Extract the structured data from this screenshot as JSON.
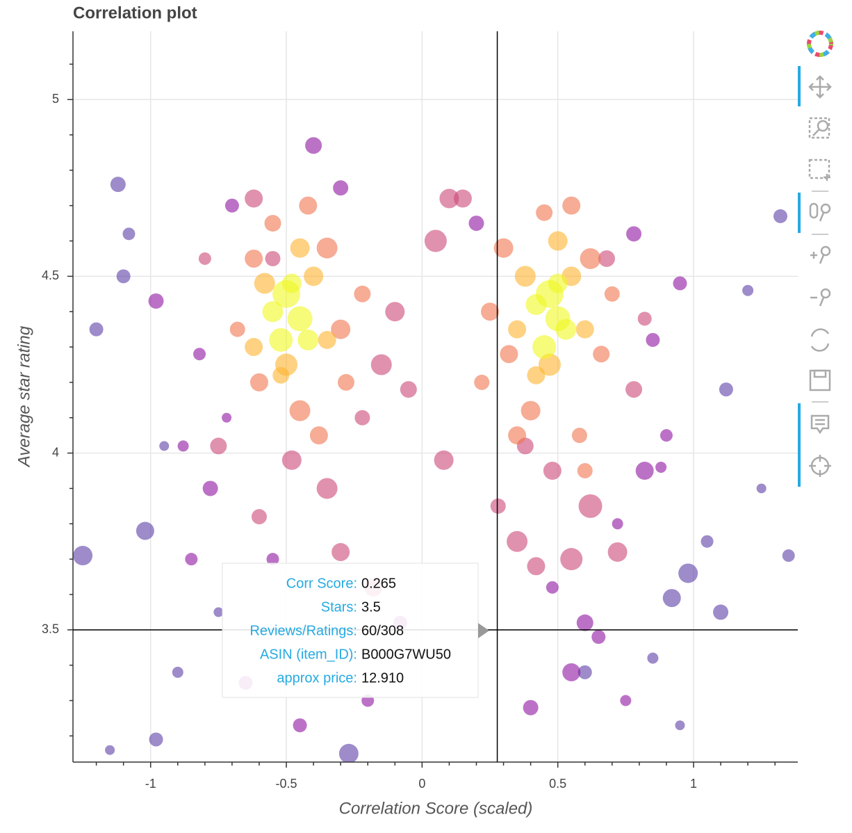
{
  "chart_data": {
    "type": "scatter",
    "title": "Correlation plot",
    "x_label": "Correlation Score (scaled)",
    "y_label": "Average star rating",
    "xlim": [
      -1.286,
      1.384
    ],
    "ylim": [
      3.126,
      5.193
    ],
    "xticks": [
      -1,
      -0.5,
      0,
      0.5,
      1
    ],
    "yticks": [
      3.5,
      4,
      4.5,
      5
    ],
    "xminorticks": [
      -1.2,
      -1.1,
      -0.9,
      -0.8,
      -0.7,
      -0.6,
      -0.4,
      -0.3,
      -0.2,
      -0.1,
      0.1,
      0.2,
      0.3,
      0.4,
      0.6,
      0.7,
      0.8,
      0.9,
      1.1,
      1.2,
      1.3
    ],
    "yminorticks": [
      3.2,
      3.3,
      3.4,
      3.6,
      3.7,
      3.8,
      3.9,
      4.1,
      4.2,
      4.3,
      4.4,
      4.6,
      4.7,
      4.8,
      4.9,
      5.1
    ],
    "grid": true,
    "opacity": 0.6,
    "crosshair": {
      "x": 0.277,
      "y": 3.5
    },
    "series": [
      {
        "color": "#5c3da6",
        "x": [
          -1.12,
          -1.02,
          -0.98,
          -1.25,
          -1.1,
          -0.9,
          -1.15,
          0.98,
          1.12,
          1.2,
          1.32,
          1.05,
          0.92,
          -1.2,
          -0.75,
          -0.27,
          0.6,
          1.25,
          -1.08,
          1.1,
          0.85,
          -0.95,
          1.35,
          0.95
        ],
        "y": [
          4.76,
          3.78,
          3.19,
          3.71,
          4.5,
          3.38,
          3.16,
          3.66,
          4.18,
          4.46,
          4.67,
          3.75,
          3.59,
          4.35,
          3.55,
          3.15,
          3.38,
          3.9,
          4.62,
          3.55,
          3.42,
          4.02,
          3.71,
          3.23
        ],
        "sizes": [
          22,
          26,
          20,
          28,
          20,
          16,
          14,
          28,
          20,
          16,
          20,
          18,
          26,
          20,
          14,
          28,
          20,
          14,
          18,
          22,
          16,
          14,
          18,
          14
        ]
      },
      {
        "color": "#8e14a0",
        "x": [
          -0.98,
          -0.82,
          -0.7,
          -0.78,
          -0.88,
          -0.4,
          -0.3,
          -0.2,
          -0.65,
          0.78,
          0.85,
          0.9,
          0.72,
          0.82,
          0.6,
          0.65,
          0.55,
          0.4,
          -0.55,
          -0.85,
          0.95,
          0.88,
          -0.72,
          0.2,
          -0.08,
          0.75,
          -0.45,
          0.48
        ],
        "y": [
          4.43,
          4.28,
          4.7,
          3.9,
          4.02,
          4.87,
          4.75,
          3.3,
          3.35,
          4.62,
          4.32,
          4.05,
          3.8,
          3.95,
          3.52,
          3.48,
          3.38,
          3.28,
          3.7,
          3.7,
          4.48,
          3.96,
          4.1,
          4.65,
          3.52,
          3.3,
          3.23,
          3.62
        ],
        "sizes": [
          22,
          18,
          20,
          22,
          16,
          24,
          22,
          18,
          20,
          22,
          20,
          18,
          16,
          26,
          24,
          20,
          26,
          22,
          18,
          18,
          20,
          16,
          14,
          22,
          20,
          16,
          20,
          18
        ]
      },
      {
        "color": "#cc4778",
        "x": [
          -0.75,
          -0.6,
          -0.3,
          -0.22,
          -0.15,
          -0.1,
          0.05,
          0.1,
          0.15,
          -0.05,
          0.28,
          0.35,
          0.42,
          0.62,
          0.72,
          0.78,
          -0.62,
          -0.48,
          -0.35,
          0.55,
          0.48,
          -0.55,
          0.38,
          0.08,
          -0.18,
          0.68,
          -0.8,
          0.82
        ],
        "y": [
          4.02,
          3.82,
          3.72,
          4.1,
          4.25,
          4.4,
          4.6,
          4.72,
          4.72,
          4.18,
          3.85,
          3.75,
          3.68,
          3.85,
          3.72,
          4.18,
          4.72,
          3.98,
          3.9,
          3.7,
          3.95,
          4.55,
          4.02,
          3.98,
          3.62,
          4.55,
          4.55,
          4.38
        ],
        "sizes": [
          24,
          22,
          26,
          22,
          30,
          28,
          32,
          28,
          26,
          24,
          22,
          30,
          26,
          34,
          28,
          24,
          26,
          28,
          30,
          32,
          26,
          22,
          24,
          28,
          26,
          24,
          18,
          20
        ]
      },
      {
        "color": "#f0754f",
        "x": [
          -0.62,
          -0.35,
          -0.3,
          -0.6,
          -0.45,
          -0.38,
          -0.68,
          -0.22,
          -0.55,
          -0.42,
          0.3,
          0.62,
          0.32,
          0.66,
          0.4,
          0.58,
          0.25,
          0.7,
          0.45,
          0.55,
          0.22,
          -0.28,
          0.35,
          0.6
        ],
        "y": [
          4.55,
          4.58,
          4.35,
          4.2,
          4.12,
          4.05,
          4.35,
          4.45,
          4.65,
          4.7,
          4.58,
          4.55,
          4.28,
          4.28,
          4.12,
          4.05,
          4.4,
          4.45,
          4.68,
          4.7,
          4.2,
          4.2,
          4.05,
          3.95
        ],
        "sizes": [
          26,
          30,
          28,
          26,
          30,
          26,
          22,
          24,
          24,
          26,
          28,
          30,
          26,
          24,
          28,
          22,
          26,
          22,
          24,
          26,
          22,
          24,
          26,
          22
        ]
      },
      {
        "color": "#fdb42f",
        "x": [
          -0.58,
          -0.4,
          -0.5,
          -0.35,
          -0.62,
          -0.45,
          0.38,
          0.55,
          0.47,
          0.6,
          0.35,
          0.5,
          -0.52,
          0.42
        ],
        "y": [
          4.48,
          4.5,
          4.25,
          4.32,
          4.3,
          4.58,
          4.5,
          4.5,
          4.25,
          4.35,
          4.35,
          4.6,
          4.22,
          4.22
        ],
        "sizes": [
          30,
          28,
          32,
          26,
          26,
          28,
          30,
          28,
          32,
          26,
          26,
          28,
          24,
          26
        ]
      },
      {
        "color": "#f0f921",
        "x": [
          -0.5,
          -0.45,
          -0.55,
          -0.42,
          -0.52,
          -0.48,
          0.47,
          0.5,
          0.42,
          0.53,
          0.45,
          0.5
        ],
        "y": [
          4.45,
          4.38,
          4.4,
          4.32,
          4.32,
          4.48,
          4.45,
          4.38,
          4.42,
          4.35,
          4.3,
          4.48
        ],
        "sizes": [
          40,
          36,
          30,
          30,
          34,
          28,
          40,
          36,
          30,
          30,
          34,
          28
        ]
      }
    ],
    "tooltip": [
      {
        "label": "Corr Score:",
        "value": "0.265"
      },
      {
        "label": "Stars:",
        "value": "3.5"
      },
      {
        "label": "Reviews/Ratings:",
        "value": "60/308"
      },
      {
        "label": "ASIN (item_ID):",
        "value": "B000G7WU50"
      },
      {
        "label": "approx price:",
        "value": "12.910"
      }
    ]
  }
}
